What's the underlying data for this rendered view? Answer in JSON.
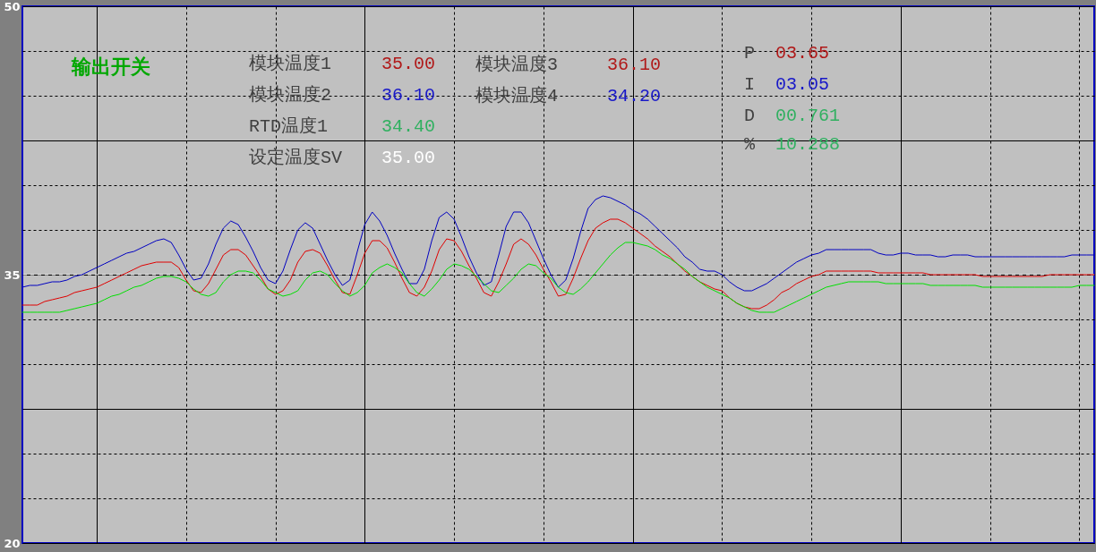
{
  "chart_data": {
    "type": "line",
    "categories": [
      null,
      null,
      null,
      null,
      null,
      null,
      null,
      null,
      null,
      null,
      null,
      null,
      null,
      null,
      null,
      null,
      null,
      null,
      null,
      null,
      null,
      null,
      null,
      null,
      null,
      null,
      null,
      null,
      null,
      null,
      null,
      null,
      null,
      null,
      null,
      null,
      null,
      null,
      null,
      null,
      null,
      null,
      null,
      null,
      null,
      null,
      null,
      null,
      null,
      null,
      null,
      null,
      null,
      null,
      null,
      null,
      null,
      null,
      null,
      null,
      null,
      null,
      null,
      null,
      null,
      null,
      null,
      null,
      null,
      null,
      null,
      null,
      null,
      null,
      null,
      null,
      null,
      null,
      null,
      null,
      null,
      null,
      null,
      null,
      null,
      null,
      null,
      null,
      null,
      null,
      null,
      null,
      null,
      null,
      null,
      null,
      null,
      null,
      null,
      null,
      null,
      null,
      null,
      null,
      null,
      null,
      null,
      null,
      null,
      null,
      null,
      null,
      null,
      null,
      null,
      null,
      null,
      null,
      null,
      null,
      null,
      null,
      null,
      null,
      null,
      null,
      null,
      null,
      null,
      null,
      null,
      null,
      null,
      null,
      null,
      null,
      null,
      null,
      null,
      null,
      null,
      null,
      null,
      null,
      null
    ],
    "series": [
      {
        "color": "#0000c0",
        "values": [
          34.3,
          34.4,
          34.4,
          34.5,
          34.6,
          34.6,
          34.7,
          34.9,
          35.0,
          35.2,
          35.4,
          35.6,
          35.8,
          36.0,
          36.2,
          36.3,
          36.5,
          36.7,
          36.9,
          37.0,
          36.8,
          36.1,
          35.3,
          34.7,
          34.8,
          35.6,
          36.7,
          37.6,
          38.0,
          37.8,
          37.1,
          36.3,
          35.4,
          34.7,
          34.5,
          35.2,
          36.4,
          37.5,
          37.9,
          37.6,
          36.7,
          35.8,
          35.0,
          34.4,
          34.7,
          36.3,
          37.8,
          38.5,
          38.0,
          37.2,
          36.2,
          35.3,
          34.5,
          34.5,
          35.3,
          36.9,
          38.2,
          38.5,
          38.1,
          37.1,
          36.0,
          35.1,
          34.4,
          34.6,
          36.1,
          37.7,
          38.5,
          38.5,
          37.9,
          36.9,
          35.9,
          35.0,
          34.3,
          34.7,
          35.9,
          37.4,
          38.7,
          39.2,
          39.4,
          39.3,
          39.1,
          38.9,
          38.6,
          38.4,
          38.1,
          37.7,
          37.3,
          36.9,
          36.5,
          36.0,
          35.7,
          35.3,
          35.2,
          35.2,
          35.0,
          34.6,
          34.3,
          34.1,
          34.1,
          34.3,
          34.5,
          34.8,
          35.1,
          35.4,
          35.7,
          35.9,
          36.1,
          36.2,
          36.4,
          36.4,
          36.4,
          36.4,
          36.4,
          36.4,
          36.4,
          36.2,
          36.1,
          36.1,
          36.2,
          36.2,
          36.1,
          36.1,
          36.1,
          36.0,
          36.0,
          36.1,
          36.1,
          36.1,
          36.0,
          36.0,
          36.0,
          36.0,
          36.0,
          36.0,
          36.0,
          36.0,
          36.0,
          36.0,
          36.0,
          36.0,
          36.0,
          36.1,
          36.1,
          36.1,
          36.1
        ]
      },
      {
        "color": "#e00000",
        "values": [
          33.3,
          33.3,
          33.3,
          33.5,
          33.6,
          33.7,
          33.8,
          34.0,
          34.1,
          34.2,
          34.3,
          34.5,
          34.7,
          34.9,
          35.1,
          35.3,
          35.5,
          35.6,
          35.7,
          35.7,
          35.7,
          35.4,
          34.7,
          34.1,
          34.0,
          34.5,
          35.3,
          36.1,
          36.4,
          36.4,
          36.1,
          35.5,
          34.9,
          34.2,
          33.9,
          34.1,
          34.7,
          35.7,
          36.3,
          36.4,
          36.2,
          35.5,
          34.7,
          34.0,
          33.9,
          35.0,
          36.2,
          36.9,
          36.9,
          36.5,
          35.7,
          34.8,
          34.0,
          33.8,
          34.3,
          35.2,
          36.4,
          37.0,
          36.9,
          36.3,
          35.5,
          34.8,
          34.0,
          33.8,
          34.6,
          35.6,
          36.7,
          37.0,
          36.7,
          36.1,
          35.3,
          34.6,
          33.8,
          33.9,
          34.8,
          35.9,
          36.9,
          37.6,
          37.9,
          38.1,
          38.1,
          37.9,
          37.6,
          37.3,
          37.0,
          36.6,
          36.3,
          36.0,
          35.6,
          35.2,
          34.9,
          34.6,
          34.4,
          34.2,
          34.1,
          33.7,
          33.4,
          33.2,
          33.1,
          33.1,
          33.3,
          33.6,
          34.0,
          34.2,
          34.5,
          34.7,
          34.9,
          35.0,
          35.2,
          35.2,
          35.2,
          35.2,
          35.2,
          35.2,
          35.2,
          35.1,
          35.1,
          35.1,
          35.1,
          35.1,
          35.1,
          35.1,
          35.0,
          35.0,
          35.0,
          35.0,
          35.0,
          35.0,
          35.0,
          34.9,
          34.9,
          34.9,
          34.9,
          34.9,
          34.9,
          34.9,
          34.9,
          34.9,
          35.0,
          35.0,
          35.0,
          35.0,
          35.0,
          35.0,
          35.0
        ]
      },
      {
        "color": "#00e000",
        "values": [
          32.9,
          32.9,
          32.9,
          32.9,
          32.9,
          32.9,
          33.0,
          33.1,
          33.2,
          33.3,
          33.4,
          33.6,
          33.8,
          33.9,
          34.1,
          34.3,
          34.4,
          34.6,
          34.8,
          34.9,
          34.9,
          34.8,
          34.6,
          34.2,
          33.9,
          33.8,
          34.0,
          34.6,
          35.0,
          35.2,
          35.2,
          35.1,
          34.7,
          34.2,
          34.0,
          33.8,
          33.9,
          34.1,
          34.7,
          35.1,
          35.2,
          35.0,
          34.5,
          34.1,
          33.8,
          34.0,
          34.4,
          35.1,
          35.4,
          35.6,
          35.4,
          35.1,
          34.5,
          34.0,
          33.8,
          34.2,
          34.7,
          35.3,
          35.6,
          35.5,
          35.3,
          34.9,
          34.5,
          34.1,
          34.0,
          34.4,
          34.8,
          35.3,
          35.6,
          35.5,
          35.1,
          34.8,
          34.3,
          34.0,
          33.9,
          34.2,
          34.6,
          35.1,
          35.6,
          36.1,
          36.5,
          36.8,
          36.8,
          36.7,
          36.6,
          36.4,
          36.1,
          35.9,
          35.6,
          35.3,
          34.9,
          34.6,
          34.3,
          34.1,
          33.9,
          33.7,
          33.4,
          33.2,
          33.0,
          32.9,
          32.9,
          32.9,
          33.1,
          33.3,
          33.5,
          33.7,
          33.9,
          34.1,
          34.3,
          34.4,
          34.5,
          34.6,
          34.6,
          34.6,
          34.6,
          34.6,
          34.5,
          34.5,
          34.5,
          34.5,
          34.5,
          34.5,
          34.4,
          34.4,
          34.4,
          34.4,
          34.4,
          34.4,
          34.4,
          34.3,
          34.3,
          34.3,
          34.3,
          34.3,
          34.3,
          34.3,
          34.3,
          34.3,
          34.3,
          34.3,
          34.3,
          34.3,
          34.4,
          34.4,
          34.4
        ]
      }
    ],
    "ylim": [
      20,
      50
    ],
    "yticks": [
      20,
      {
        "value": 22.5,
        "label": null
      },
      {
        "value": 25,
        "label": null
      },
      {
        "value": 27.5,
        "label": null
      },
      {
        "value": 30,
        "label": null
      },
      {
        "value": 32.5,
        "label": null
      },
      35,
      {
        "value": 37.5,
        "label": null
      },
      {
        "value": 40,
        "label": null
      },
      {
        "value": 42.5,
        "label": null
      },
      {
        "value": 45,
        "label": null
      },
      {
        "value": 47.5,
        "label": null
      },
      50
    ],
    "grid": true,
    "tick_labels": "y",
    "ref_lines": [
      {
        "axis": "y",
        "value": 35,
        "color": "#ffffff",
        "line_style": "dashed"
      }
    ],
    "annotations": [
      "输出开关",
      "模块温度1",
      "35.00",
      "模块温度2",
      "36.10",
      "RTD温度1",
      "34.40",
      "设定温度SV",
      "35.00",
      "模块温度3",
      "36.10",
      "模块温度4",
      "34.20",
      "P",
      "03.65",
      "I",
      "03.05",
      "D",
      "00.761",
      "%",
      "10.288"
    ]
  }
}
